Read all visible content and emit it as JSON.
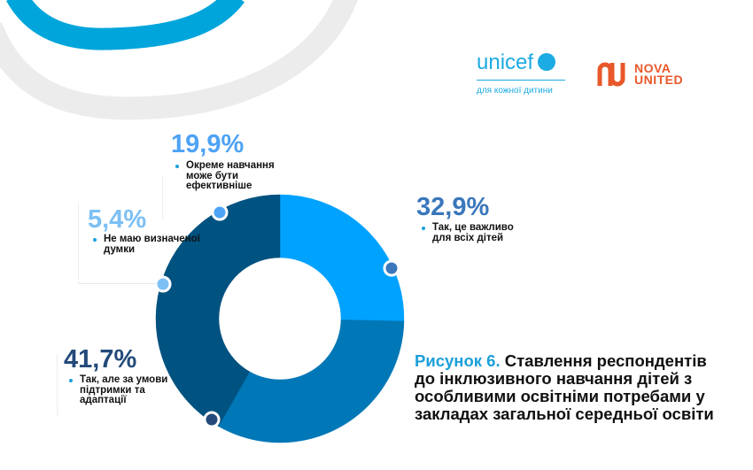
{
  "logos": {
    "unicef": {
      "name": "unicef",
      "tagline": "для кожної дитини",
      "color": "#1CABE2"
    },
    "nova": {
      "line1": "NOVA",
      "line2": "UNITED",
      "color": "#E8582A"
    }
  },
  "figure": {
    "number": "Рисунок 6.",
    "caption": "Ставлення респондентів до інклюзивного навчання дітей з особливими освітніми потребами у закладах загальної середньої освіти"
  },
  "chart_data": {
    "type": "pie",
    "donut": true,
    "title": "Рисунок 6. Ставлення респондентів до інклюзивного навчання дітей з особливими освітніми потребами у закладах загальної середньої освіти",
    "slices": [
      {
        "label": "Не маю визначеної думки",
        "value": 5.4,
        "value_text": "5,4%",
        "color": "#00A2FF",
        "label_color": "#7CC0F5"
      },
      {
        "label": "Окреме навчання може бути ефективніше",
        "value": 19.9,
        "value_text": "19,9%",
        "color": "#00A2FF",
        "label_color": "#4DA3F5"
      },
      {
        "label": "Так, це важливо для всіх дітей",
        "value": 32.9,
        "value_text": "32,9%",
        "color": "#0077B6",
        "label_color": "#3A77BB"
      },
      {
        "label": "Так, але за умови підтримки та адаптації",
        "value": 41.7,
        "value_text": "41,7%",
        "color": "#005280",
        "label_color": "#234A7A"
      }
    ]
  }
}
